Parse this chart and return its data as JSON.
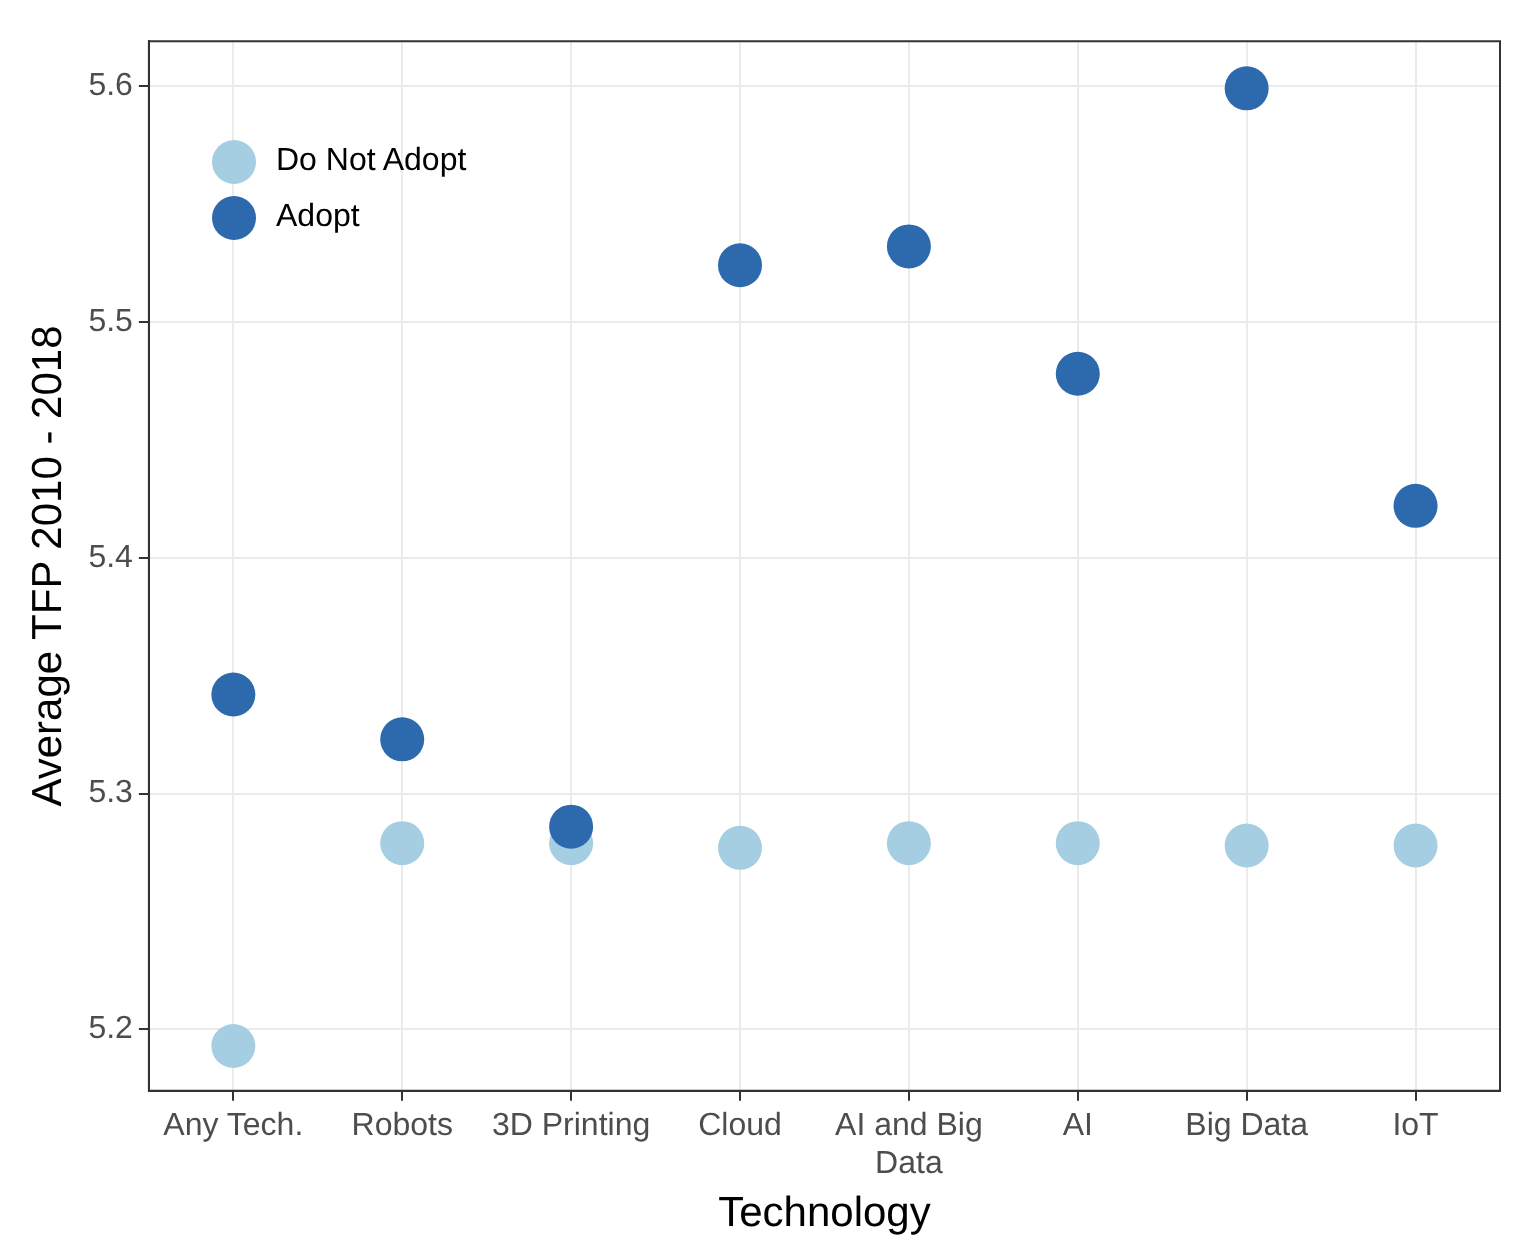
{
  "chart_data": {
    "type": "scatter",
    "xlabel": "Technology",
    "ylabel": "Average TFP 2010 - 2018",
    "categories": [
      "Any Tech.",
      "Robots",
      "3D Printing",
      "Cloud",
      "AI and Big Data",
      "AI",
      "Big Data",
      "IoT"
    ],
    "series": [
      {
        "name": "Do Not Adopt",
        "color": "#a6cee3",
        "values": [
          5.193,
          5.279,
          5.279,
          5.277,
          5.279,
          5.279,
          5.278,
          5.278
        ]
      },
      {
        "name": "Adopt",
        "color": "#2c6aad",
        "values": [
          5.342,
          5.323,
          5.286,
          5.524,
          5.532,
          5.478,
          5.599,
          5.422
        ]
      }
    ],
    "ylim": [
      5.174,
      5.619
    ],
    "yticks": [
      5.2,
      5.3,
      5.4,
      5.5,
      5.6
    ],
    "grid": true,
    "legend": "top left",
    "marker": "circle"
  }
}
